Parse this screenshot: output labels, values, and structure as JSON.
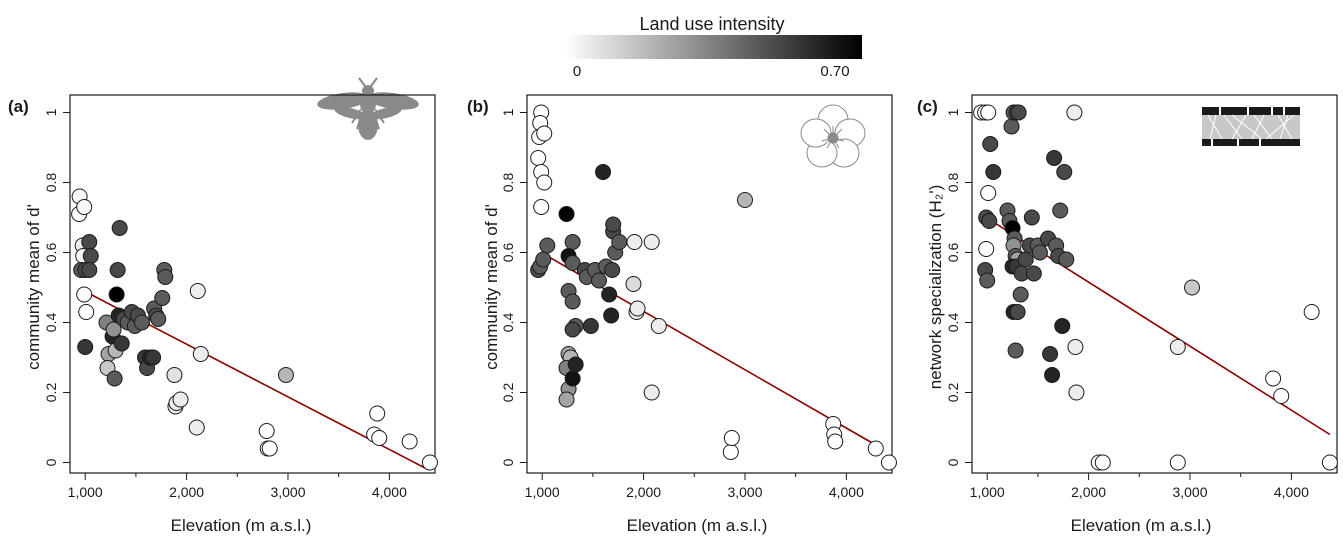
{
  "legend": {
    "title": "Land use intensity",
    "min_label": "0",
    "max_label": "0.70",
    "min": 0,
    "max": 0.7,
    "color_low": "#ffffff",
    "color_high": "#000000"
  },
  "trend_color": "#8b0000",
  "chart_data": [
    {
      "type": "scatter",
      "panel": "(a)",
      "icon": "bee-icon",
      "xlabel": "Elevation (m a.s.l.)",
      "ylabel": "community mean of d'",
      "xlim": [
        850,
        4450
      ],
      "ylim": [
        -0.03,
        1.05
      ],
      "xticks": [
        1000,
        2000,
        3000,
        4000
      ],
      "xtick_labels": [
        "1,000",
        "2,000",
        "3,000",
        "4,000"
      ],
      "yticks": [
        0,
        0.2,
        0.4,
        0.6,
        0.8,
        1
      ],
      "ytick_labels": [
        "0",
        "0.2",
        "0.4",
        "0.6",
        "0.8",
        "1"
      ],
      "trend": {
        "x": [
          990,
          4380
        ],
        "y": [
          0.49,
          -0.02
        ]
      },
      "points": [
        [
          940,
          0.71,
          0.0
        ],
        [
          945,
          0.76,
          0.02
        ],
        [
          990,
          0.73,
          0.02
        ],
        [
          975,
          0.62,
          0.05
        ],
        [
          980,
          0.59,
          0.03
        ],
        [
          960,
          0.55,
          0.45
        ],
        [
          1000,
          0.55,
          0.5
        ],
        [
          1040,
          0.63,
          0.5
        ],
        [
          1055,
          0.59,
          0.5
        ],
        [
          1040,
          0.55,
          0.5
        ],
        [
          990,
          0.48,
          0.0
        ],
        [
          1010,
          0.43,
          0.0
        ],
        [
          1000,
          0.33,
          0.55
        ],
        [
          1210,
          0.4,
          0.35
        ],
        [
          1230,
          0.31,
          0.25
        ],
        [
          1220,
          0.27,
          0.15
        ],
        [
          1270,
          0.36,
          0.6
        ],
        [
          1280,
          0.38,
          0.3
        ],
        [
          1300,
          0.32,
          0.2
        ],
        [
          1290,
          0.24,
          0.45
        ],
        [
          1310,
          0.48,
          0.7
        ],
        [
          1320,
          0.55,
          0.5
        ],
        [
          1340,
          0.67,
          0.5
        ],
        [
          1330,
          0.42,
          0.6
        ],
        [
          1360,
          0.34,
          0.55
        ],
        [
          1380,
          0.41,
          0.5
        ],
        [
          1420,
          0.4,
          0.45
        ],
        [
          1460,
          0.43,
          0.5
        ],
        [
          1490,
          0.39,
          0.45
        ],
        [
          1520,
          0.42,
          0.5
        ],
        [
          1560,
          0.4,
          0.45
        ],
        [
          1590,
          0.3,
          0.55
        ],
        [
          1610,
          0.27,
          0.5
        ],
        [
          1640,
          0.3,
          0.6
        ],
        [
          1670,
          0.3,
          0.55
        ],
        [
          1680,
          0.44,
          0.45
        ],
        [
          1700,
          0.42,
          0.5
        ],
        [
          1720,
          0.41,
          0.45
        ],
        [
          1760,
          0.47,
          0.45
        ],
        [
          1780,
          0.55,
          0.45
        ],
        [
          1790,
          0.53,
          0.45
        ],
        [
          1880,
          0.25,
          0.08
        ],
        [
          1890,
          0.16,
          0.05
        ],
        [
          1900,
          0.17,
          0.05
        ],
        [
          1940,
          0.18,
          0.05
        ],
        [
          2100,
          0.1,
          0.05
        ],
        [
          2110,
          0.49,
          0.05
        ],
        [
          2140,
          0.31,
          0.05
        ],
        [
          2790,
          0.09,
          0.0
        ],
        [
          2800,
          0.04,
          0.0
        ],
        [
          2820,
          0.04,
          0.0
        ],
        [
          2980,
          0.25,
          0.2
        ],
        [
          3850,
          0.08,
          0.0
        ],
        [
          3880,
          0.14,
          0.0
        ],
        [
          3900,
          0.07,
          0.0
        ],
        [
          4200,
          0.06,
          0.0
        ],
        [
          4400,
          0.0,
          0.0
        ]
      ]
    },
    {
      "type": "scatter",
      "panel": "(b)",
      "icon": "flower-icon",
      "xlabel": "Elevation (m a.s.l.)",
      "ylabel": "community mean of d'",
      "xlim": [
        850,
        4450
      ],
      "ylim": [
        -0.03,
        1.05
      ],
      "xticks": [
        1000,
        2000,
        3000,
        4000
      ],
      "xtick_labels": [
        "1,000",
        "2,000",
        "3,000",
        "4,000"
      ],
      "yticks": [
        0,
        0.2,
        0.4,
        0.6,
        0.8,
        1
      ],
      "ytick_labels": [
        "0",
        "0.2",
        "0.4",
        "0.6",
        "0.8",
        "1"
      ],
      "trend": {
        "x": [
          990,
          4350
        ],
        "y": [
          0.6,
          0.04
        ]
      },
      "points": [
        [
          990,
          1.0,
          0.0
        ],
        [
          980,
          0.97,
          0.0
        ],
        [
          970,
          0.93,
          0.0
        ],
        [
          1020,
          0.94,
          0.0
        ],
        [
          960,
          0.87,
          0.0
        ],
        [
          990,
          0.83,
          0.0
        ],
        [
          1020,
          0.8,
          0.0
        ],
        [
          990,
          0.73,
          0.0
        ],
        [
          960,
          0.55,
          0.5
        ],
        [
          980,
          0.56,
          0.45
        ],
        [
          1010,
          0.58,
          0.45
        ],
        [
          1050,
          0.62,
          0.45
        ],
        [
          1240,
          0.71,
          0.7
        ],
        [
          1300,
          0.63,
          0.45
        ],
        [
          1260,
          0.59,
          0.65
        ],
        [
          1300,
          0.57,
          0.45
        ],
        [
          1260,
          0.49,
          0.45
        ],
        [
          1300,
          0.46,
          0.45
        ],
        [
          1330,
          0.39,
          0.45
        ],
        [
          1300,
          0.38,
          0.5
        ],
        [
          1260,
          0.31,
          0.25
        ],
        [
          1280,
          0.3,
          0.2
        ],
        [
          1240,
          0.27,
          0.35
        ],
        [
          1260,
          0.21,
          0.3
        ],
        [
          1240,
          0.18,
          0.25
        ],
        [
          1300,
          0.24,
          0.65
        ],
        [
          1330,
          0.28,
          0.6
        ],
        [
          1420,
          0.55,
          0.5
        ],
        [
          1440,
          0.53,
          0.45
        ],
        [
          1480,
          0.39,
          0.55
        ],
        [
          1520,
          0.55,
          0.45
        ],
        [
          1560,
          0.52,
          0.45
        ],
        [
          1600,
          0.83,
          0.6
        ],
        [
          1630,
          0.56,
          0.45
        ],
        [
          1660,
          0.48,
          0.6
        ],
        [
          1680,
          0.42,
          0.6
        ],
        [
          1690,
          0.55,
          0.5
        ],
        [
          1700,
          0.66,
          0.5
        ],
        [
          1700,
          0.68,
          0.5
        ],
        [
          1720,
          0.6,
          0.45
        ],
        [
          1760,
          0.63,
          0.45
        ],
        [
          1910,
          0.63,
          0.05
        ],
        [
          1900,
          0.51,
          0.1
        ],
        [
          1930,
          0.43,
          0.05
        ],
        [
          1940,
          0.44,
          0.05
        ],
        [
          2080,
          0.63,
          0.05
        ],
        [
          2080,
          0.2,
          0.05
        ],
        [
          2150,
          0.39,
          0.05
        ],
        [
          2860,
          0.03,
          0.0
        ],
        [
          2870,
          0.07,
          0.0
        ],
        [
          3000,
          0.75,
          0.2
        ],
        [
          3870,
          0.11,
          0.0
        ],
        [
          3880,
          0.08,
          0.0
        ],
        [
          3890,
          0.06,
          0.0
        ],
        [
          4290,
          0.04,
          0.0
        ],
        [
          4420,
          0.0,
          0.0
        ]
      ]
    },
    {
      "type": "scatter",
      "panel": "(c)",
      "icon": "network-icon",
      "xlabel": "Elevation (m a.s.l.)",
      "ylabel": "network specialization (H₂')",
      "xlim": [
        850,
        4450
      ],
      "ylim": [
        -0.03,
        1.05
      ],
      "xticks": [
        1000,
        2000,
        3000,
        4000
      ],
      "xtick_labels": [
        "1,000",
        "2,000",
        "3,000",
        "4,000"
      ],
      "yticks": [
        0,
        0.2,
        0.4,
        0.6,
        0.8,
        1
      ],
      "ytick_labels": [
        "0",
        "0.2",
        "0.4",
        "0.6",
        "0.8",
        "1"
      ],
      "trend": {
        "x": [
          990,
          4380
        ],
        "y": [
          0.7,
          0.08
        ]
      },
      "points": [
        [
          940,
          1.0,
          0.0
        ],
        [
          980,
          1.0,
          0.0
        ],
        [
          1010,
          1.0,
          0.0
        ],
        [
          1030,
          0.91,
          0.5
        ],
        [
          1060,
          0.83,
          0.55
        ],
        [
          1010,
          0.77,
          0.0
        ],
        [
          990,
          0.7,
          0.5
        ],
        [
          1020,
          0.69,
          0.5
        ],
        [
          990,
          0.61,
          0.0
        ],
        [
          980,
          0.55,
          0.5
        ],
        [
          1000,
          0.52,
          0.45
        ],
        [
          1200,
          0.72,
          0.45
        ],
        [
          1220,
          0.69,
          0.45
        ],
        [
          1240,
          0.96,
          0.45
        ],
        [
          1260,
          1.0,
          0.45
        ],
        [
          1290,
          1.0,
          0.5
        ],
        [
          1310,
          1.0,
          0.5
        ],
        [
          1250,
          0.67,
          0.7
        ],
        [
          1270,
          0.64,
          0.45
        ],
        [
          1260,
          0.62,
          0.3
        ],
        [
          1280,
          0.59,
          0.45
        ],
        [
          1300,
          0.58,
          0.25
        ],
        [
          1250,
          0.56,
          0.6
        ],
        [
          1290,
          0.56,
          0.55
        ],
        [
          1260,
          0.43,
          0.6
        ],
        [
          1300,
          0.43,
          0.5
        ],
        [
          1280,
          0.32,
          0.45
        ],
        [
          1330,
          0.48,
          0.45
        ],
        [
          1340,
          0.54,
          0.5
        ],
        [
          1380,
          0.58,
          0.5
        ],
        [
          1420,
          0.62,
          0.5
        ],
        [
          1440,
          0.7,
          0.5
        ],
        [
          1460,
          0.54,
          0.5
        ],
        [
          1500,
          0.62,
          0.45
        ],
        [
          1520,
          0.6,
          0.45
        ],
        [
          1600,
          0.64,
          0.5
        ],
        [
          1620,
          0.31,
          0.55
        ],
        [
          1640,
          0.25,
          0.6
        ],
        [
          1660,
          0.87,
          0.55
        ],
        [
          1680,
          0.62,
          0.45
        ],
        [
          1700,
          0.59,
          0.5
        ],
        [
          1720,
          0.72,
          0.45
        ],
        [
          1740,
          0.39,
          0.6
        ],
        [
          1760,
          0.83,
          0.5
        ],
        [
          1780,
          0.58,
          0.45
        ],
        [
          1860,
          1.0,
          0.05
        ],
        [
          1870,
          0.33,
          0.05
        ],
        [
          1880,
          0.2,
          0.05
        ],
        [
          2100,
          0.0,
          0.0
        ],
        [
          2140,
          0.0,
          0.0
        ],
        [
          2880,
          0.0,
          0.0
        ],
        [
          2880,
          0.33,
          0.05
        ],
        [
          3020,
          0.5,
          0.15
        ],
        [
          3820,
          0.24,
          0.0
        ],
        [
          3900,
          0.19,
          0.0
        ],
        [
          4200,
          0.43,
          0.0
        ],
        [
          4380,
          0.0,
          0.0
        ]
      ]
    }
  ]
}
